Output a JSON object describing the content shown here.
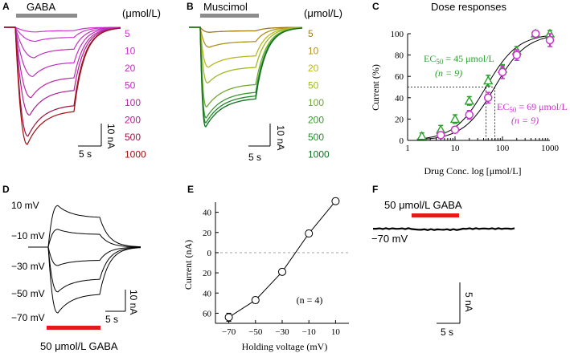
{
  "panels": {
    "A": {
      "label": "A",
      "drug": "GABA",
      "unit": "(μmol/L)",
      "concentrations": [
        {
          "c": "5",
          "color": "#cc33cc",
          "frac": 0.04
        },
        {
          "c": "10",
          "color": "#cc33cc",
          "frac": 0.12
        },
        {
          "c": "20",
          "color": "#c030b8",
          "frac": 0.26
        },
        {
          "c": "50",
          "color": "#c02cc0",
          "frac": 0.42
        },
        {
          "c": "100",
          "color": "#b82aa8",
          "frac": 0.6
        },
        {
          "c": "200",
          "color": "#b02090",
          "frac": 0.75
        },
        {
          "c": "500",
          "color": "#a01040",
          "frac": 0.93
        },
        {
          "c": "1000",
          "color": "#a01010",
          "frac": 1.0
        }
      ],
      "scale_y": "10 nA",
      "scale_x": "5 s"
    },
    "B": {
      "label": "B",
      "drug": "Muscimol",
      "unit": "(μmol/L)",
      "concentrations": [
        {
          "c": "5",
          "color": "#a07818",
          "frac": 0.05
        },
        {
          "c": "10",
          "color": "#b09020",
          "frac": 0.2
        },
        {
          "c": "20",
          "color": "#b8b820",
          "frac": 0.4
        },
        {
          "c": "50",
          "color": "#a0b820",
          "frac": 0.56
        },
        {
          "c": "100",
          "color": "#70a830",
          "frac": 0.8
        },
        {
          "c": "200",
          "color": "#3c9a30",
          "frac": 0.91
        },
        {
          "c": "500",
          "color": "#1f8a2a",
          "frac": 0.96
        },
        {
          "c": "1000",
          "color": "#107020",
          "frac": 1.0
        }
      ],
      "scale_y": "10 nA",
      "scale_x": "5 s"
    },
    "D": {
      "label": "D",
      "traces": [
        {
          "v": "10 mV",
          "frac": -0.63
        },
        {
          "v": "−10 mV",
          "frac": -0.27
        },
        {
          "v": "−30 mV",
          "frac": 0.28
        },
        {
          "v": "−50 mV",
          "frac": 0.68
        },
        {
          "v": "−70 mV",
          "frac": 1.0
        }
      ],
      "bar_label": "50 μmol/L GABA",
      "bar_color": "#e31a1c",
      "scale_y": "10 nA",
      "scale_x": "5 s"
    },
    "F": {
      "label": "F",
      "bar_label": "50 μmol/L GABA",
      "bar_color": "#e31a1c",
      "holding": "−70 mV",
      "scale_y": "5 nA",
      "scale_x": "5 s"
    }
  },
  "chart_data": [
    {
      "panel": "C",
      "type": "scatter",
      "title": "Dose responses",
      "xlabel": "Drug Conc. log [μmol/L]",
      "ylabel": "Current (%)",
      "xscale": "log",
      "xlim": [
        1,
        1000
      ],
      "ylim": [
        0,
        100
      ],
      "xticks": [
        "1",
        "10",
        "100",
        "1000"
      ],
      "yticks": [
        "0",
        "20",
        "40",
        "60",
        "80",
        "100"
      ],
      "series": [
        {
          "name": "Muscimol",
          "color": "#2ca02c",
          "marker": "triangle",
          "x": [
            2,
            5,
            10,
            20,
            50,
            100,
            200,
            500,
            1000
          ],
          "y": [
            4,
            10,
            20,
            37,
            56,
            67,
            84,
            100,
            100
          ],
          "err": [
            3,
            4,
            4,
            4,
            5,
            4,
            4,
            2,
            3
          ]
        },
        {
          "name": "GABA",
          "color": "#cc33cc",
          "marker": "circle",
          "x": [
            5,
            10,
            20,
            50,
            100,
            200,
            500,
            1000
          ],
          "y": [
            5,
            10,
            24,
            40,
            64,
            80,
            100,
            94
          ],
          "err": [
            3,
            3,
            4,
            5,
            6,
            5,
            2,
            6
          ]
        },
        {
          "name": "Fit",
          "color": "#000000",
          "marker": "none",
          "x": [
            1,
            2,
            5,
            10,
            20,
            45,
            69,
            100,
            200,
            500,
            1000
          ],
          "y": [
            0,
            2,
            6,
            13,
            27,
            50,
            57,
            68,
            85,
            99,
            100
          ]
        }
      ],
      "annotations": [
        {
          "text": "EC",
          "sub": "50",
          "rest": " = 45 μmol/L",
          "line2": "(n = 9)",
          "color": "#2ca02c"
        },
        {
          "text": "EC",
          "sub": "50",
          "rest": " = 69 μmol/L",
          "line2": "(n = 9)",
          "color": "#cc33cc"
        }
      ],
      "reference_line": {
        "y": 50,
        "x": [
          45,
          69
        ]
      }
    },
    {
      "panel": "E",
      "type": "line",
      "xlabel": "Holding voltage (mV)",
      "ylabel": "Current (nA)",
      "xlim": [
        -80,
        20
      ],
      "ylim": [
        -70,
        50
      ],
      "xticks": [
        -70,
        -50,
        -30,
        -10,
        10
      ],
      "yticks": [
        {
          "v": 40,
          "label": "40"
        },
        {
          "v": 20,
          "label": "20"
        },
        {
          "v": 0,
          "label": "0"
        },
        {
          "v": -20,
          "label": "20"
        },
        {
          "v": -40,
          "label": "40"
        },
        {
          "v": -60,
          "label": "60"
        }
      ],
      "x": [
        -70,
        -50,
        -30,
        -10,
        10
      ],
      "y": [
        -64,
        -47,
        -19,
        19,
        51
      ],
      "err": [
        4,
        3,
        3,
        3,
        3
      ],
      "annotation": "(n = 4)"
    }
  ]
}
